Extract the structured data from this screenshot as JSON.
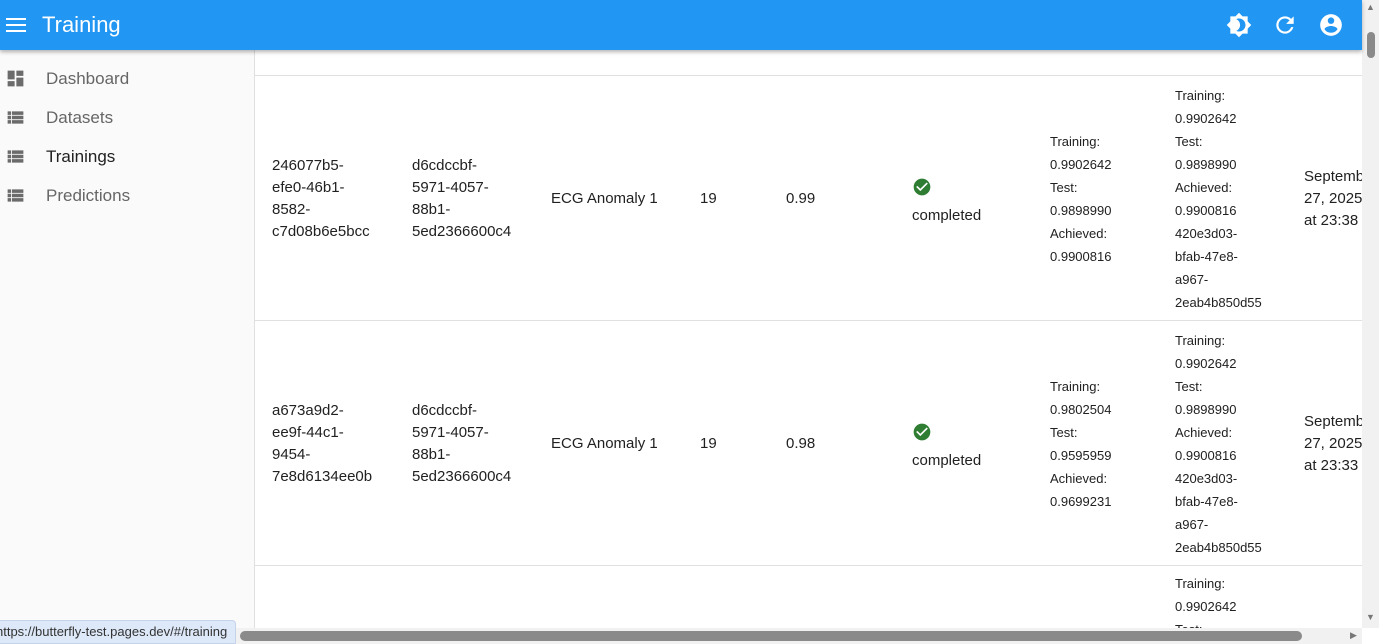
{
  "appbar": {
    "title": "Training",
    "icons": [
      "menu-icon",
      "brightness-icon",
      "refresh-icon",
      "account-circle-icon"
    ]
  },
  "sidebar": {
    "items": [
      {
        "label": "Dashboard",
        "icon": "dashboard-icon"
      },
      {
        "label": "Datasets",
        "icon": "list-icon"
      },
      {
        "label": "Trainings",
        "icon": "list-icon",
        "active": true
      },
      {
        "label": "Predictions",
        "icon": "list-icon"
      }
    ]
  },
  "rows": [
    {
      "id": [
        "246077b5-",
        "efe0-46b1-",
        "8582-",
        "c7d08b6e5bcc"
      ],
      "dataset": [
        "d6cdccbf-",
        "5971-4057-",
        "88b1-",
        "5ed2366600c4"
      ],
      "name": "ECG Anomaly 1",
      "epochs": "19",
      "score": "0.99",
      "status": "completed",
      "metrics": [
        "Training:",
        "0.9902642",
        "Test:",
        "0.9898990",
        "Achieved:",
        "0.9900816"
      ],
      "best": [
        "Training:",
        "0.9902642",
        "Test:",
        "0.9898990",
        "Achieved:",
        "0.9900816",
        "420e3d03-",
        "bfab-47e8-",
        "a967-",
        "2eab4b850d55"
      ],
      "date": [
        "Septemb",
        "27, 2025",
        "at 23:38"
      ]
    },
    {
      "id": [
        "a673a9d2-",
        "ee9f-44c1-",
        "9454-",
        "7e8d6134ee0b"
      ],
      "dataset": [
        "d6cdccbf-",
        "5971-4057-",
        "88b1-",
        "5ed2366600c4"
      ],
      "name": "ECG Anomaly 1",
      "epochs": "19",
      "score": "0.98",
      "status": "completed",
      "metrics": [
        "Training:",
        "0.9802504",
        "Test:",
        "0.9595959",
        "Achieved:",
        "0.9699231"
      ],
      "best": [
        "Training:",
        "0.9902642",
        "Test:",
        "0.9898990",
        "Achieved:",
        "0.9900816",
        "420e3d03-",
        "bfab-47e8-",
        "a967-",
        "2eab4b850d55"
      ],
      "date": [
        "Septemb",
        "27, 2025",
        "at 23:33"
      ]
    },
    {
      "best": [
        "Training:",
        "0.9902642",
        "Test:"
      ]
    }
  ],
  "status_url": "https://butterfly-test.pages.dev/#/training",
  "colors": {
    "primary": "#2196f3",
    "success": "#2e7d32"
  }
}
